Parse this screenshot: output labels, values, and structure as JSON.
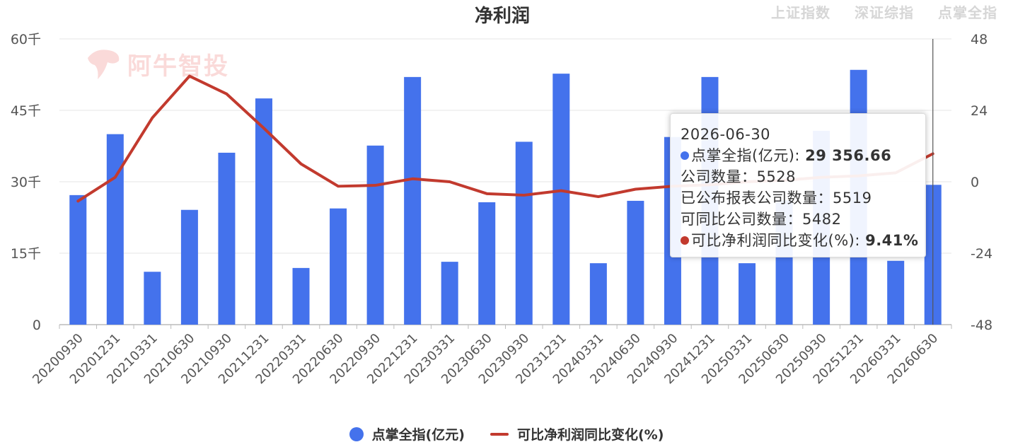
{
  "header": {
    "title": "净利润",
    "tabs": [
      "上证指数",
      "深证综指",
      "点掌全指"
    ]
  },
  "watermark": {
    "text": "阿牛智投"
  },
  "colors": {
    "bar": "#4472ec",
    "line": "#c23a2e",
    "tab_inactive": "#d6d6d6"
  },
  "chart_data": {
    "type": "bar+line",
    "categories": [
      "20200930",
      "20201231",
      "20210331",
      "20210630",
      "20210930",
      "20211231",
      "20220331",
      "20220630",
      "20220930",
      "20221231",
      "20230331",
      "20230630",
      "20230930",
      "20231231",
      "20240331",
      "20240630",
      "20240930",
      "20241231",
      "20250331",
      "20250630",
      "20250930",
      "20251231",
      "20260331",
      "20260630"
    ],
    "series": [
      {
        "name": "点掌全指(亿元)",
        "kind": "bar",
        "axis": "left",
        "values": [
          27200,
          40000,
          11100,
          24100,
          36100,
          47500,
          11900,
          24400,
          37600,
          52000,
          13200,
          25700,
          38400,
          52700,
          12900,
          26000,
          39400,
          52000,
          12900,
          26100,
          40700,
          53500,
          13400,
          29356.66
        ]
      },
      {
        "name": "可比净利润同比变化(%)",
        "kind": "line",
        "axis": "right",
        "values": [
          -6.5,
          1.5,
          21.5,
          35.5,
          29.5,
          18.0,
          6.0,
          -1.5,
          -1.2,
          1.0,
          0.0,
          -4.0,
          -4.5,
          -3.0,
          -5.0,
          -2.5,
          -1.5,
          -1.0,
          0.0,
          0.5,
          1.5,
          2.0,
          3.0,
          9.41
        ]
      }
    ],
    "left_axis": {
      "ticks": [
        "0",
        "15千",
        "30千",
        "45千",
        "60千"
      ],
      "range": [
        0,
        60000
      ]
    },
    "right_axis": {
      "ticks": [
        "-48",
        "-24",
        "0",
        "24",
        "48"
      ],
      "range": [
        -48,
        48
      ]
    },
    "grid": true,
    "legend_position": "bottom-center"
  },
  "tooltip": {
    "date": "2026-06-30",
    "rows": [
      {
        "label": "点掌全指(亿元)",
        "sep": ": ",
        "value": "29 356.66",
        "color": "#4472ec",
        "bold": true
      },
      {
        "label": "公司数量",
        "sep": "：",
        "value": "5528"
      },
      {
        "label": "已公布报表公司数量",
        "sep": "：",
        "value": "5519"
      },
      {
        "label": "可同比公司数量",
        "sep": "：",
        "value": "5482"
      },
      {
        "label": "可比净利润同比变化(%)",
        "sep": ": ",
        "value": "9.41%",
        "color": "#c23a2e",
        "bold": true
      }
    ]
  },
  "legend": [
    {
      "label": "点掌全指(亿元)",
      "type": "dot"
    },
    {
      "label": "可比净利润同比变化(%)",
      "type": "line"
    }
  ]
}
